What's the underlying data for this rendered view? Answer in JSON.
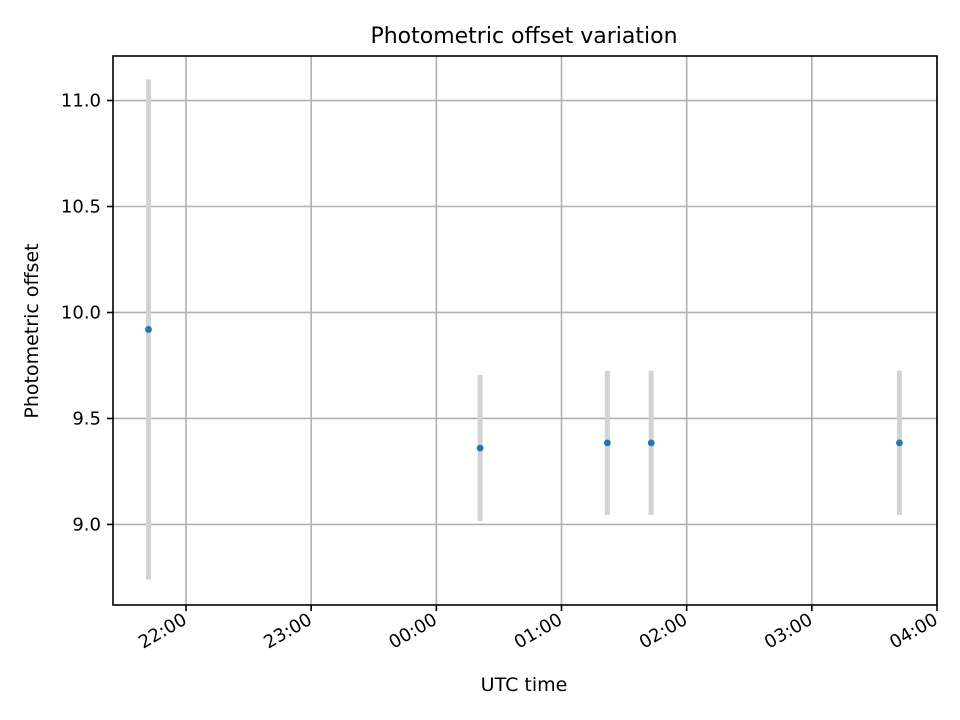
{
  "chart_data": {
    "type": "scatter",
    "title": "Photometric offset variation",
    "xlabel": "UTC time",
    "ylabel": "Photometric offset",
    "x_ticks": [
      "22:00",
      "23:00",
      "00:00",
      "01:00",
      "02:00",
      "03:00",
      "04:00"
    ],
    "x_range": [
      "21:25",
      "04:00"
    ],
    "y_ticks": [
      "9.0",
      "9.5",
      "10.0",
      "10.5",
      "11.0"
    ],
    "ylim": [
      8.62,
      11.21
    ],
    "grid": true,
    "series": [
      {
        "points": [
          {
            "x": "21:42",
            "y": 9.92,
            "err": 1.18
          },
          {
            "x": "00:21",
            "y": 9.36,
            "err": 0.345
          },
          {
            "x": "01:22",
            "y": 9.385,
            "err": 0.34
          },
          {
            "x": "01:43",
            "y": 9.385,
            "err": 0.34
          },
          {
            "x": "03:42",
            "y": 9.385,
            "err": 0.34
          }
        ],
        "marker_color": "#1f77b4",
        "errorbar_color": "#d3d3d3"
      }
    ]
  }
}
